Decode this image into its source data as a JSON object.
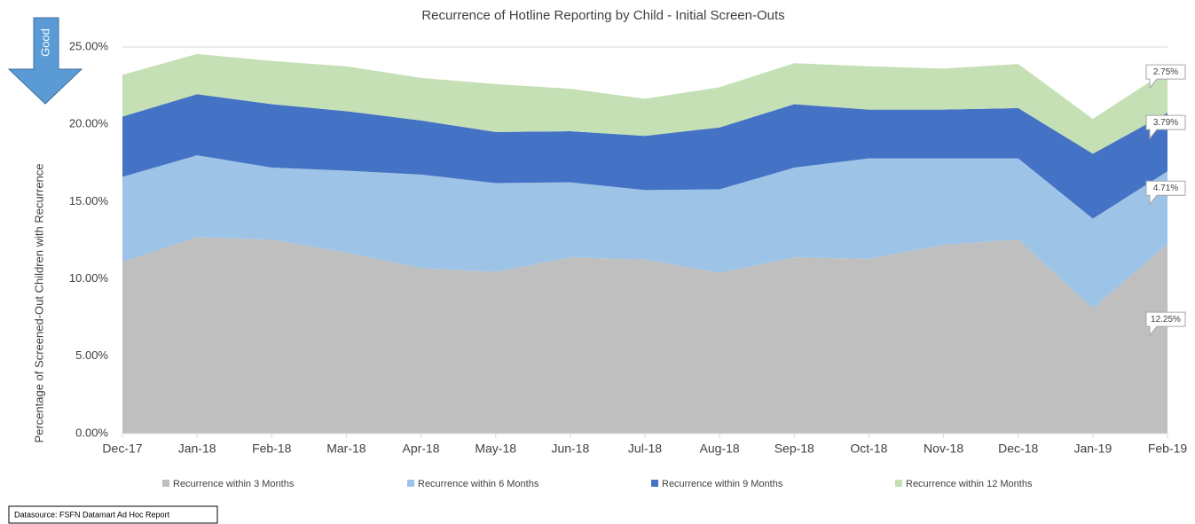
{
  "chart_data": {
    "type": "stacked_area",
    "title": "Recurrence of Hotline Reporting by Child - Initial Screen-Outs",
    "y_axis_label": "Percentage of Screened-Out Children with Recurrence",
    "annotation": "Good",
    "source_note": "Datasource: FSFN Datamart Ad Hoc Report",
    "categories": [
      "Dec-17",
      "Jan-18",
      "Feb-18",
      "Mar-18",
      "Apr-18",
      "May-18",
      "Jun-18",
      "Jul-18",
      "Aug-18",
      "Sep-18",
      "Oct-18",
      "Nov-18",
      "Dec-18",
      "Jan-19",
      "Feb-19"
    ],
    "series": [
      {
        "name": "Recurrence within 3 Months",
        "color": "#bfbfbf",
        "values": [
          11.1,
          12.7,
          12.55,
          11.7,
          10.7,
          10.45,
          11.4,
          11.25,
          10.4,
          11.4,
          11.3,
          12.2,
          12.55,
          8.1,
          12.25
        ],
        "value_labels": [
          null,
          null,
          null,
          null,
          null,
          null,
          null,
          null,
          null,
          null,
          null,
          null,
          null,
          null,
          "12.25%"
        ]
      },
      {
        "name": "Recurrence within 6 Months",
        "color": "#9dc3e6",
        "values": [
          5.5,
          5.3,
          4.65,
          5.3,
          6.05,
          5.75,
          4.85,
          4.5,
          5.4,
          5.8,
          6.5,
          5.6,
          5.25,
          5.8,
          4.71
        ],
        "value_labels": [
          null,
          null,
          null,
          null,
          null,
          null,
          null,
          null,
          null,
          null,
          null,
          null,
          null,
          null,
          "4.71%"
        ]
      },
      {
        "name": "Recurrence within 9 Months",
        "color": "#4472c4",
        "values": [
          3.9,
          3.95,
          4.1,
          3.85,
          3.5,
          3.3,
          3.3,
          3.5,
          4.0,
          4.1,
          3.15,
          3.15,
          3.25,
          4.2,
          3.79
        ],
        "value_labels": [
          null,
          null,
          null,
          null,
          null,
          null,
          null,
          null,
          null,
          null,
          null,
          null,
          null,
          null,
          "3.79%"
        ]
      },
      {
        "name": "Recurrence within 12 Months",
        "color": "#c5e0b4",
        "values": [
          2.7,
          2.6,
          2.8,
          2.9,
          2.75,
          3.1,
          2.75,
          2.4,
          2.6,
          2.65,
          2.8,
          2.65,
          2.85,
          2.25,
          2.75
        ],
        "value_labels": [
          null,
          null,
          null,
          null,
          null,
          null,
          null,
          null,
          null,
          null,
          null,
          null,
          null,
          null,
          "2.75%"
        ]
      }
    ],
    "ylim": [
      0,
      25
    ],
    "yticks": [
      {
        "value": 0,
        "label": "0.00%"
      },
      {
        "value": 5,
        "label": "5.00%"
      },
      {
        "value": 10,
        "label": "10.00%"
      },
      {
        "value": 15,
        "label": "15.00%"
      },
      {
        "value": 20,
        "label": "20.00%"
      },
      {
        "value": 25,
        "label": "25.00%"
      }
    ],
    "grid": true,
    "legend": "bottom"
  }
}
